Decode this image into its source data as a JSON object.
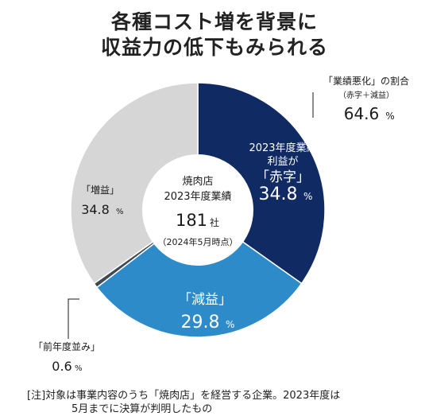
{
  "title_lines": [
    "各種コスト増を背景に",
    "収益力の低下もみられる"
  ],
  "center": {
    "line1": "焼肉店",
    "line2": "2023年度業績",
    "count": "181",
    "count_unit": "社",
    "asof": "（2024年5月時点）"
  },
  "callout": {
    "label": "「業績悪化」の割合",
    "sub": "（赤字＋減益）",
    "value": "64.6",
    "unit": "%"
  },
  "note": {
    "line1": "[注]対象は事業内容のうち「焼肉店」を経営する企業。2023年度は",
    "line2": "5月までに決算が判明したもの"
  },
  "chart_data": {
    "type": "pie",
    "subtitle": "焼肉店 2023年度業績 181社",
    "unit": "%",
    "slices": [
      {
        "key": "deficit",
        "label": "「赤字」",
        "label_prefix": [
          "2023年度業績",
          "利益が"
        ],
        "value": 34.8,
        "value_text": "34.8",
        "color": "#102a63",
        "text_color": "#ffffff"
      },
      {
        "key": "decline",
        "label": "「減益」",
        "label_prefix": [],
        "value": 29.8,
        "value_text": "29.8",
        "color": "#2e8bc9",
        "text_color": "#ffffff"
      },
      {
        "key": "flat",
        "label": "「前年度並み」",
        "label_prefix": [],
        "value": 0.6,
        "value_text": "0.6",
        "color": "#3f4a57",
        "text_color": "#1a1a1a"
      },
      {
        "key": "increase",
        "label": "「増益」",
        "label_prefix": [],
        "value": 34.8,
        "value_text": "34.8",
        "color": "#d6d6d6",
        "text_color": "#1a1a1a"
      }
    ]
  }
}
